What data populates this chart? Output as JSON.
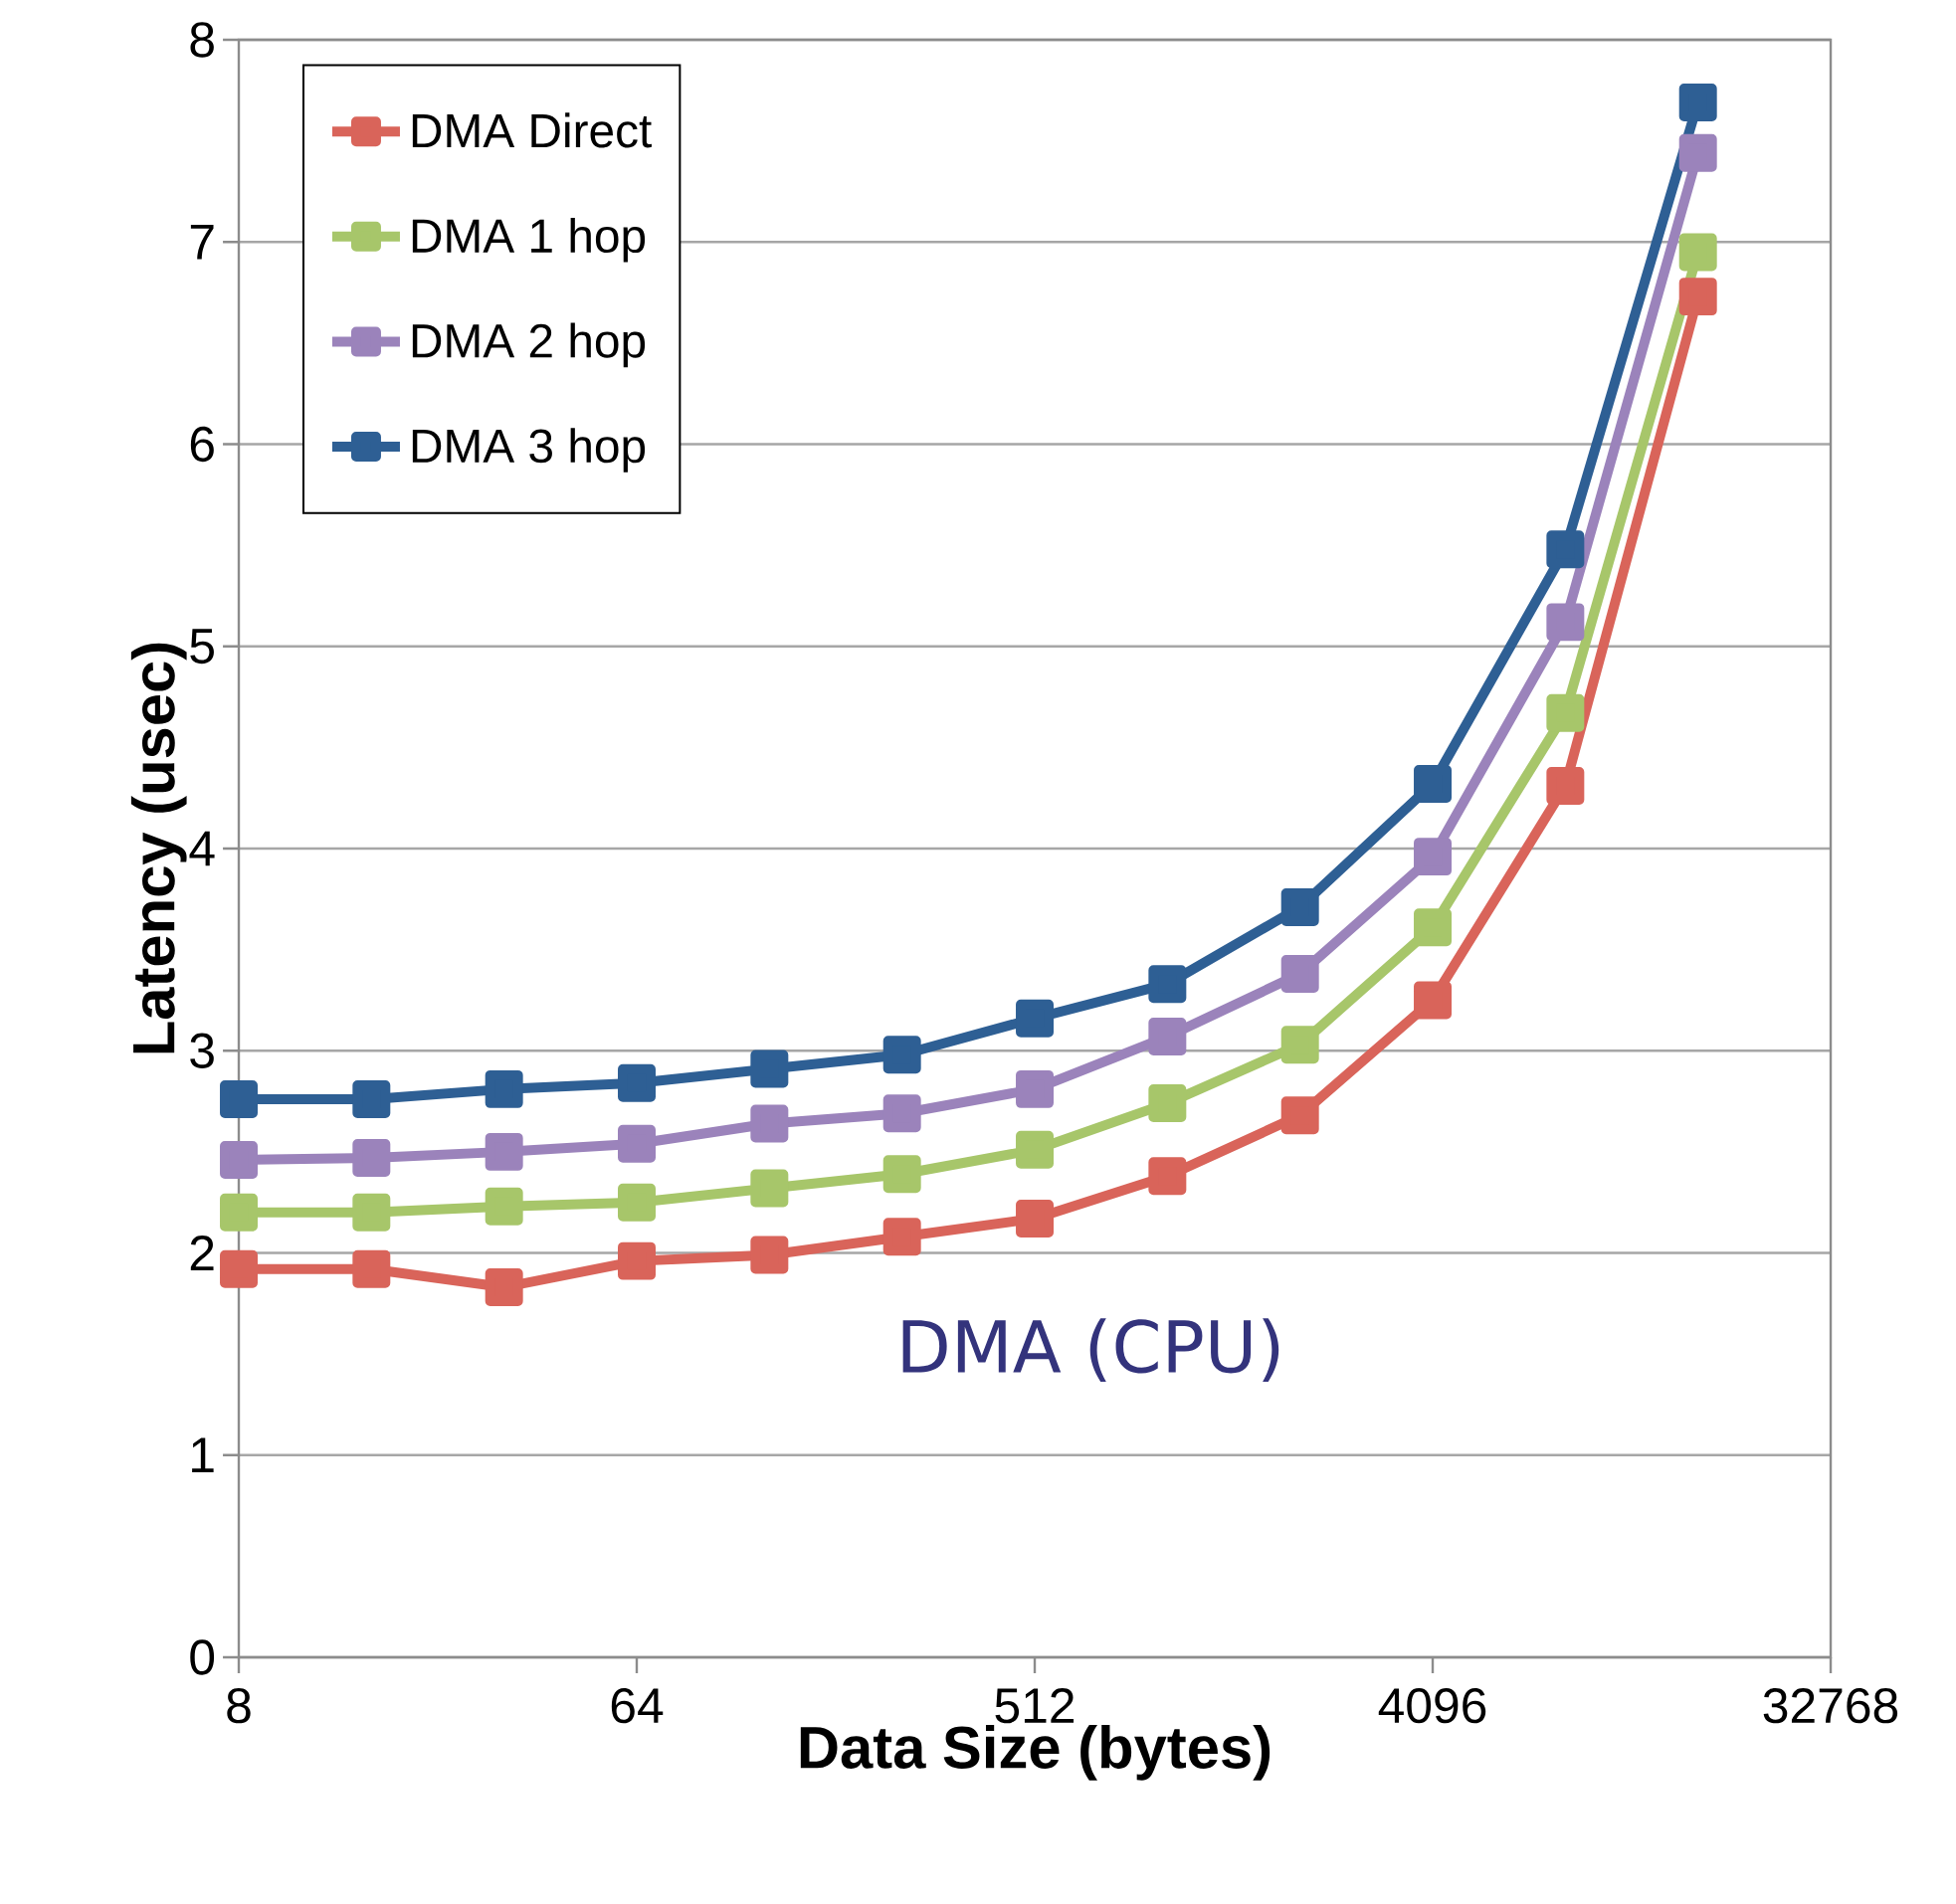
{
  "chart_data": {
    "type": "line",
    "xlabel": "Data Size (bytes)",
    "ylabel": "Latency (usec)",
    "x": [
      8,
      16,
      32,
      64,
      128,
      256,
      512,
      1024,
      2048,
      4096,
      8192,
      16384
    ],
    "log": "x",
    "xlim": [
      8,
      32768
    ],
    "xticks": [
      8,
      64,
      512,
      4096,
      32768
    ],
    "ylim": [
      0,
      8
    ],
    "yticks": [
      0,
      1,
      2,
      3,
      4,
      5,
      6,
      7,
      8
    ],
    "grid": "y",
    "legend": "top left",
    "marker": "square",
    "line_style": "solid",
    "annotations": [
      "DMA (CPU)"
    ],
    "series": [
      {
        "name": "DMA Direct",
        "color": "#d9645a",
        "values": [
          1.92,
          1.92,
          1.83,
          1.96,
          1.99,
          2.08,
          2.17,
          2.38,
          2.68,
          3.25,
          4.31,
          6.73
        ]
      },
      {
        "name": "DMA 1 hop",
        "color": "#a7c66a",
        "values": [
          2.2,
          2.2,
          2.23,
          2.25,
          2.32,
          2.39,
          2.51,
          2.74,
          3.03,
          3.61,
          4.67,
          6.95
        ]
      },
      {
        "name": "DMA 2 hop",
        "color": "#9b83bb",
        "values": [
          2.46,
          2.47,
          2.5,
          2.54,
          2.64,
          2.69,
          2.81,
          3.07,
          3.38,
          3.96,
          5.12,
          7.44
        ]
      },
      {
        "name": "DMA 3 hop",
        "color": "#2e5f94",
        "values": [
          2.76,
          2.76,
          2.81,
          2.84,
          2.91,
          2.98,
          3.16,
          3.33,
          3.71,
          4.32,
          5.48,
          7.69
        ]
      }
    ]
  }
}
